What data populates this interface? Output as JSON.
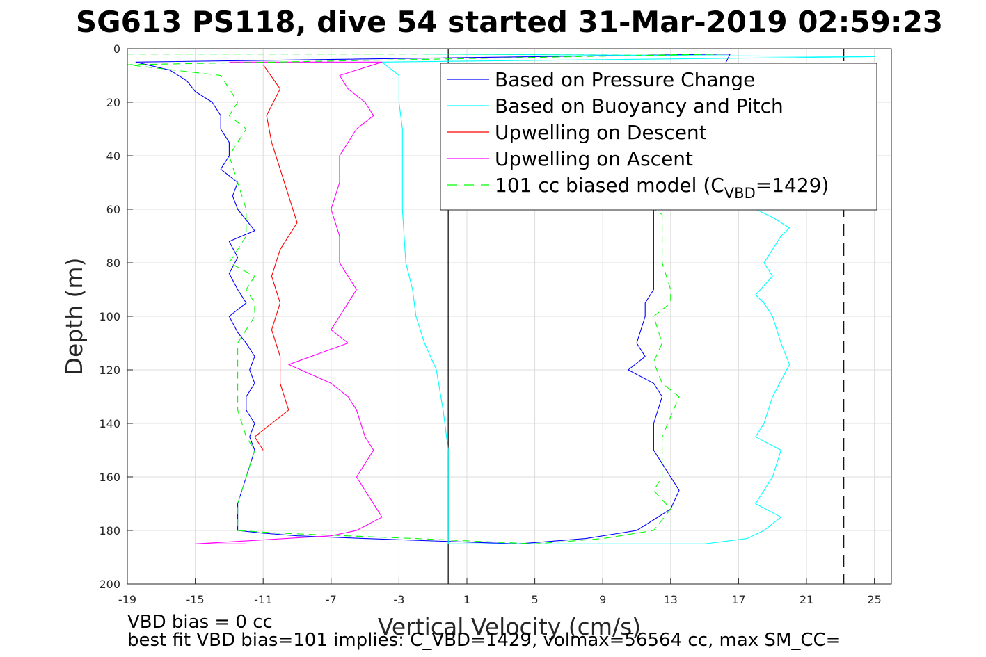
{
  "chart_data": {
    "type": "line",
    "title": "SG613 PS118, dive 54 started 31-Mar-2019 02:59:23",
    "xlabel": "Vertical Velocity (cm/s)",
    "ylabel": "Depth (m)",
    "xlim": [
      -19,
      26
    ],
    "ylim": [
      0,
      200
    ],
    "y_reversed": true,
    "grid": true,
    "x_ticks": [
      -19,
      -15,
      -11,
      -7,
      -3,
      1,
      5,
      9,
      13,
      17,
      21,
      25
    ],
    "y_ticks": [
      0,
      20,
      40,
      60,
      80,
      100,
      120,
      140,
      160,
      180,
      200
    ],
    "vertical_lines": [
      {
        "x": -0.1,
        "style": "solid",
        "color": "#000000"
      },
      {
        "x": 23.2,
        "style": "dashed",
        "color": "#000000"
      }
    ],
    "legend": {
      "position": "top-right",
      "entries": [
        "Based on Pressure Change",
        "Based on Buoyancy and Pitch",
        "Upwelling on Descent",
        "Upwelling on Ascent",
        "101 cc biased model (C"
      ],
      "last_entry_sub": "VBD",
      "last_entry_tail": "=1429)"
    },
    "series": [
      {
        "name": "Based on Pressure Change",
        "color": "#0000ff",
        "style": "solid",
        "x": [
          16.5,
          -18.5,
          -16.5,
          -15.5,
          -15.0,
          -14.0,
          -13.5,
          -13.5,
          -13.0,
          -13.0,
          -13.5,
          -12.5,
          -12.8,
          -12.5,
          -12.0,
          -11.5,
          -13.0,
          -12.5,
          -13.0,
          -12.5,
          -12.0,
          -13.0,
          -12.5,
          -12.0,
          -11.5,
          -11.8,
          -11.5,
          -12.0,
          -12.0,
          -11.5,
          -11.8,
          -11.5,
          -12.0,
          -12.5,
          -12.5,
          -11.0,
          -9.0,
          -5.0,
          4.0,
          8.0,
          10.0,
          11.0,
          12.0,
          13.0,
          13.5,
          13.0,
          12.5,
          12.0,
          12.0,
          12.0,
          12.5,
          12.0,
          10.5,
          11.5,
          11.0,
          11.5,
          11.5,
          12.0,
          12.0,
          12.0,
          12.0,
          12.0,
          12.0,
          12.0,
          12.0,
          16.5
        ],
        "y": [
          2,
          5,
          8,
          12,
          16,
          20,
          25,
          30,
          35,
          40,
          45,
          50,
          55,
          60,
          64,
          68,
          72,
          78,
          84,
          90,
          95,
          100,
          106,
          110,
          115,
          120,
          125,
          130,
          135,
          140,
          145,
          150,
          160,
          170,
          180,
          181,
          182,
          183,
          185,
          183,
          181,
          180,
          176,
          172,
          165,
          160,
          155,
          150,
          145,
          140,
          130,
          125,
          120,
          115,
          110,
          100,
          95,
          90,
          85,
          80,
          75,
          70,
          66,
          63,
          60,
          2
        ]
      },
      {
        "name": "Based on Buoyancy and Pitch",
        "color": "#00ffff",
        "style": "solid",
        "x": [
          -1.5,
          25.0,
          -4.0,
          -3.0,
          -3.0,
          -2.8,
          -2.8,
          -2.6,
          -2.2,
          -2.0,
          -1.5,
          -0.8,
          -0.4,
          -0.1,
          -0.1,
          15.0,
          17.5,
          18.5,
          19.5,
          18.0,
          18.5,
          19.0,
          19.5,
          18.0,
          18.5,
          19.0,
          20.0,
          19.5,
          19.0,
          18.5,
          18.0,
          19.0,
          18.5,
          19.0,
          19.5,
          20.0,
          19.0,
          18.0
        ],
        "y": [
          2,
          3,
          5,
          10,
          20,
          30,
          60,
          80,
          90,
          100,
          110,
          120,
          135,
          150,
          185,
          185,
          183,
          180,
          175,
          170,
          165,
          160,
          150,
          145,
          140,
          130,
          118,
          110,
          100,
          95,
          92,
          85,
          80,
          75,
          70,
          67,
          63,
          60
        ]
      },
      {
        "name": "Upwelling on Descent",
        "color": "#ff0000",
        "style": "solid",
        "x": [
          -11.0,
          -10.0,
          -10.8,
          -10.5,
          -10.0,
          -9.5,
          -9.0,
          -10.0,
          -10.5,
          -10.0,
          -10.5,
          -10.0,
          -10.0,
          -9.5,
          -10.5,
          -11.5,
          -11.0
        ],
        "y": [
          6,
          15,
          25,
          35,
          45,
          55,
          65,
          75,
          85,
          95,
          105,
          115,
          125,
          135,
          140,
          145,
          150
        ]
      },
      {
        "name": "Upwelling on Ascent",
        "color": "#ff00ff",
        "style": "solid",
        "x": [
          -13.0,
          -4.0,
          -6.5,
          -6.0,
          -5.0,
          -4.5,
          -5.5,
          -6.0,
          -6.5,
          -6.5,
          -7.0,
          -6.5,
          -6.5,
          -6.0,
          -5.5,
          -6.0,
          -6.5,
          -7.0,
          -6.0,
          -9.5,
          -7.0,
          -6.0,
          -5.5,
          -5.0,
          -4.5,
          -5.5,
          -5.0,
          -4.0,
          -5.5,
          -7.0,
          -15.0,
          -12.0
        ],
        "y": [
          5,
          5,
          10,
          15,
          20,
          25,
          30,
          35,
          40,
          50,
          60,
          70,
          80,
          85,
          90,
          95,
          100,
          105,
          110,
          118,
          125,
          130,
          135,
          145,
          150,
          160,
          165,
          175,
          180,
          182,
          185,
          185
        ]
      },
      {
        "name": "101 cc biased model (C_VBD=1429)",
        "color": "#00ff00",
        "style": "dashed",
        "x": [
          -19.0,
          16.0,
          -19.0,
          -13.5,
          -13.0,
          -12.5,
          -13.0,
          -12.0,
          -13.0,
          -12.5,
          -12.0,
          -12.0,
          -13.0,
          -11.5,
          -12.0,
          -11.5,
          -11.5,
          -12.5,
          -12.5,
          -12.5,
          -12.0,
          -11.5,
          -12.0,
          -12.5,
          -12.5,
          -10.0,
          -2.0,
          5.0,
          9.0,
          12.0,
          12.5,
          13.0,
          12.0,
          12.5,
          12.5,
          13.5,
          12.5,
          12.0,
          12.5,
          12.0,
          13.0,
          13.0,
          12.5,
          12.5,
          12.5,
          12.5,
          12.5,
          12.0
        ],
        "y": [
          2,
          2,
          6,
          10,
          15,
          20,
          25,
          30,
          40,
          50,
          60,
          70,
          80,
          85,
          90,
          95,
          100,
          110,
          125,
          135,
          145,
          150,
          160,
          170,
          180,
          181,
          183,
          185,
          183,
          180,
          176,
          172,
          165,
          160,
          145,
          130,
          125,
          117,
          110,
          100,
          95,
          90,
          80,
          75,
          70,
          65,
          62,
          60
        ]
      }
    ]
  },
  "footer": {
    "line1": "VBD bias = 0 cc",
    "line2": "best fit VBD bias=101 implies: C_VBD=1429, volmax=56564 cc, max SM_CC="
  }
}
